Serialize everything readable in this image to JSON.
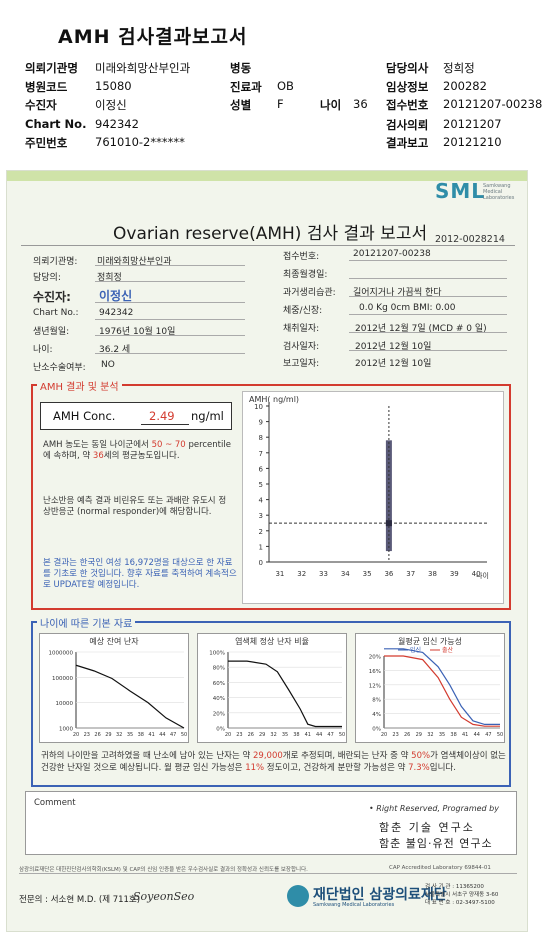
{
  "header": {
    "title": "AMH 검사결과보고서",
    "rows": [
      {
        "l1": "의뢰기관명",
        "v1": "미래와희망산부인과",
        "l2": "병동",
        "v2": "",
        "l3": "",
        "v3": "",
        "l4": "담당의사",
        "v4": "정희정"
      },
      {
        "l1": "병원코드",
        "v1": "15080",
        "l2": "진료과",
        "v2": "OB",
        "l3": "",
        "v3": "",
        "l4": "임상정보",
        "v4": "200282"
      },
      {
        "l1": "수진자",
        "v1": "이정신",
        "l2": "성별",
        "v2": "F",
        "l3": "나이",
        "v3": "36",
        "l4": "접수번호",
        "v4": "20121207-00238"
      },
      {
        "l1": "Chart No.",
        "v1": "942342",
        "l2": "",
        "v2": "",
        "l3": "",
        "v3": "",
        "l4": "검사의뢰",
        "v4": "20121207"
      },
      {
        "l1": "주민번호",
        "v1": "761010-2******",
        "l2": "",
        "v2": "",
        "l3": "",
        "v3": "",
        "l4": "결과보고",
        "v4": "20121210"
      }
    ]
  },
  "report": {
    "logo": "SML",
    "logo_sub": "Samkwang Medical Laboratories",
    "title": "Ovarian reserve(AMH) 검사 결과 보고서",
    "report_no": "2012-0028214",
    "left_info": [
      {
        "label": "의뢰기관명:",
        "value": "미래와희망산부인과"
      },
      {
        "label": "담당의:",
        "value": "정희정"
      },
      {
        "label": "수진자:",
        "value": "이정신"
      },
      {
        "label": "Chart No.:",
        "value": "942342"
      },
      {
        "label": "생년월일:",
        "value": "1976년 10월 10일"
      },
      {
        "label": "나이:",
        "value": "36.2 세"
      },
      {
        "label": "난소수술여부:",
        "value": "NO"
      }
    ],
    "right_info": [
      {
        "label": "접수번호:",
        "value": "20121207-00238"
      },
      {
        "label": "최종월경일:",
        "value": ""
      },
      {
        "label": "과거생리습관:",
        "value": "길어지거나 가끔씩 한다"
      },
      {
        "label": "체중/신장:",
        "value": "0.0 Kg      0cm    BMI:   0.00"
      },
      {
        "label": "채취일자:",
        "value": "2012년 12월 7일   (MCD #  0 일)"
      },
      {
        "label": "검사일자:",
        "value": "2012년 12월 10일"
      },
      {
        "label": "보고일자:",
        "value": "2012년 12월 10일"
      }
    ],
    "amh_section": {
      "label": "AMH 결과 및 분석",
      "conc_label": "AMH Conc.",
      "conc_value": "2.49",
      "conc_unit": "ng/ml",
      "p1a": "AMH 농도는 동일 나이군에서",
      "p1b": "50 ~ 70",
      "p1c": "percentile에 속하며, 약",
      "p1d": "36",
      "p1e": "세의 평균농도입니다.",
      "p2": "난소반응 예측 결과 비린유도 또는 과배란 유도시 정상반응군 (normal responder)에 해당합니다.",
      "p3": "본 결과는 한국인 여성 16,972명을 대상으로 한 자료를 기초로 한 것입니다. 향후 자료를 축적하여 계속적으로 UPDATE할 예정입니다."
    },
    "age_section": {
      "label": "나이에 따른 기본 자료",
      "chart1_title": "예상 잔여 난자",
      "chart2_title": "염색체 정상 난자 비율",
      "chart3_title": "월평균 임신 가능성",
      "chart3_legend_a": "임신",
      "chart3_legend_b": "출산",
      "text_a": "귀하의 나이만을 고려하였을 때 난소에 남아 있는 난자는 약",
      "text_b": "29,000",
      "text_c": "개로 추정되며, 배란되는 난자 중 약",
      "text_d": "50%",
      "text_e": "가 염색체이상이 없는 건강한 난자일 것으로 예상됩니다. 월 평균 임신 가능성은",
      "text_f": "11%",
      "text_g": "정도이고, 건강하게 분만할 가능성은 약",
      "text_h": "7.3%",
      "text_i": "입니다."
    },
    "comment_label": "Comment",
    "rights": "• Right Reserved, Programed by",
    "inst1": "함춘 기술 연구소",
    "inst2": "함춘 불임·유전 연구소",
    "footer_left": "삼광의료재단은 대한진단검사의학회(KSLM) 및 CAP의 신임 인증을 받은 우수검사실로 결과의 정확성과 신뢰도를 보장합니다.",
    "footer_cap": "CAP Accredited Laboratory  69844-01",
    "doctor": "전문의 : 서소현 M.D. (제 711호)",
    "signature": "SoyeonSeo",
    "foundation": "재단법인 삼광의료재단",
    "foundation_sub": "Samkwang Medical Laboratories",
    "contact": [
      "검 사 기 관 : 11365200",
      "서울특별시 서초구 양재동 3-60",
      "대 표 번 호 : 02-3497-5100"
    ]
  },
  "chart_data": [
    {
      "type": "scatter",
      "title": "AMH( ng/ml)",
      "xlabel": "나이",
      "ylabel": "AMH( ng/ml)",
      "x_ticks": [
        31,
        32,
        33,
        34,
        35,
        36,
        37,
        38,
        39,
        40
      ],
      "y_ticks": [
        0,
        1,
        2,
        3,
        4,
        5,
        6,
        7,
        8,
        9,
        10
      ],
      "xlim": [
        30.5,
        40.5
      ],
      "ylim": [
        0,
        10
      ],
      "range_bar": {
        "x": 36,
        "low": 0.7,
        "high": 7.8
      },
      "point": {
        "x": 36.2,
        "y": 2.49
      }
    },
    {
      "type": "line",
      "title": "예상 잔여 난자",
      "x_ticks": [
        20,
        23,
        26,
        29,
        32,
        35,
        38,
        41,
        44,
        47,
        50
      ],
      "y_ticks": [
        1000,
        10000,
        100000,
        1000000
      ],
      "y_scale": "log",
      "x": [
        20,
        25,
        30,
        35,
        40,
        45,
        50
      ],
      "values": [
        300000,
        180000,
        90000,
        29000,
        10000,
        2500,
        1000
      ]
    },
    {
      "type": "line",
      "title": "염색체 정상 난자 비율",
      "x_ticks": [
        20,
        23,
        26,
        29,
        32,
        35,
        38,
        41,
        44,
        47,
        50
      ],
      "y_ticks": [
        "0%",
        "20%",
        "40%",
        "60%",
        "80%",
        "100%"
      ],
      "x": [
        20,
        25,
        30,
        33,
        36,
        39,
        41,
        43,
        50
      ],
      "values": [
        88,
        88,
        84,
        74,
        50,
        25,
        5,
        2,
        2
      ]
    },
    {
      "type": "line",
      "title": "월평균 임신 가능성",
      "x_ticks": [
        20,
        23,
        26,
        29,
        32,
        35,
        38,
        41,
        44,
        47,
        50
      ],
      "y_ticks": [
        "0%",
        "4%",
        "8%",
        "12%",
        "16%",
        "20%"
      ],
      "series": [
        {
          "name": "임신",
          "x": [
            20,
            25,
            30,
            34,
            37,
            40,
            43,
            46,
            50
          ],
          "values": [
            22,
            22,
            21,
            17,
            12,
            6,
            2,
            1,
            1
          ]
        },
        {
          "name": "출산",
          "x": [
            20,
            25,
            30,
            34,
            37,
            40,
            43,
            46,
            50
          ],
          "values": [
            20,
            20,
            19,
            14,
            8,
            3,
            1,
            0.5,
            0.5
          ]
        }
      ]
    }
  ]
}
